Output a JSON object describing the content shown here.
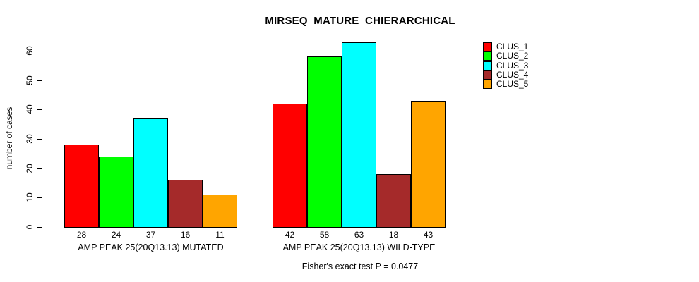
{
  "title": "MIRSEQ_MATURE_CHIERARCHICAL",
  "chart_data": {
    "type": "bar",
    "title": "MIRSEQ_MATURE_CHIERARCHICAL",
    "xlabel": "",
    "ylabel": "number of cases",
    "ylim": [
      0,
      60
    ],
    "yticks": [
      0,
      10,
      20,
      30,
      40,
      50,
      60
    ],
    "grid": false,
    "legend_position": "top-right",
    "bar_value_labels_shown": true,
    "categories": [
      "AMP PEAK 25(20Q13.13) MUTATED",
      "AMP PEAK 25(20Q13.13) WILD-TYPE"
    ],
    "series": [
      {
        "name": "CLUS_1",
        "color": "#FF0000",
        "values": [
          28,
          42
        ]
      },
      {
        "name": "CLUS_2",
        "color": "#00FF00",
        "values": [
          24,
          58
        ]
      },
      {
        "name": "CLUS_3",
        "color": "#00FFFF",
        "values": [
          37,
          63
        ]
      },
      {
        "name": "CLUS_4",
        "color": "#A52A2A",
        "values": [
          16,
          18
        ]
      },
      {
        "name": "CLUS_5",
        "color": "#FFA500",
        "values": [
          11,
          43
        ]
      }
    ],
    "annotation": "Fisher's exact test P = 0.0477"
  }
}
